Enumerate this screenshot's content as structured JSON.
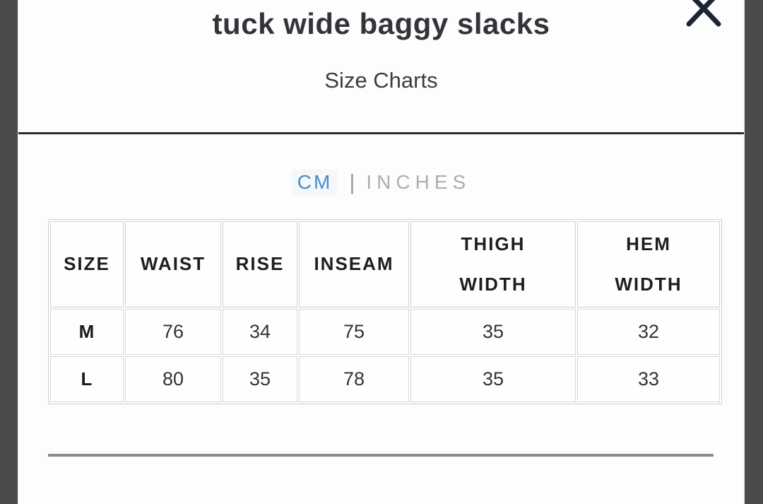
{
  "modal": {
    "title": "tuck wide baggy slacks",
    "subtitle": "Size Charts"
  },
  "unit_toggle": {
    "cm_label": "CM",
    "separator": "|",
    "inches_label": "INCHES",
    "selected_unit": "CM",
    "selected_color": "#4a8bc7",
    "unselected_color": "#aeaeae"
  },
  "size_table": {
    "headers": [
      "SIZE",
      "WAIST",
      "RISE",
      "INSEAM",
      "THIGH\nWIDTH",
      "HEM\nWIDTH"
    ],
    "rows": [
      [
        "M",
        "76",
        "34",
        "75",
        "35",
        "32"
      ],
      [
        "L",
        "80",
        "35",
        "78",
        "35",
        "33"
      ]
    ]
  },
  "icons": {
    "close": "✕"
  },
  "colors": {
    "overlay_side": "#4a4a4a",
    "top_divider": "#2b2b2b",
    "bottom_divider": "#8d8d85",
    "table_border": "#d3d3d3",
    "close_icon": "#1c2533",
    "title_text": "#33333a"
  }
}
